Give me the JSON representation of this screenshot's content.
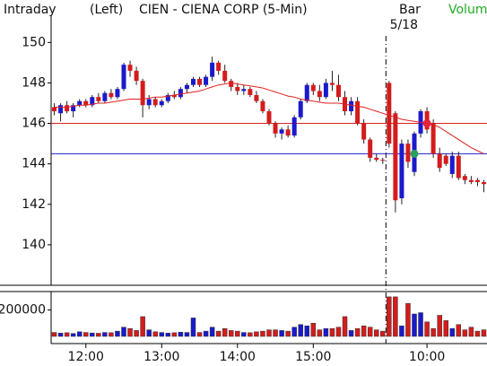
{
  "chart_data": {
    "type": "candlestick",
    "mode_label": "Intraday",
    "side_label": "(Left)",
    "title": "CIEN - CIENA CORP (5-Min)",
    "bar_label": "Bar",
    "volume_label": "Volume",
    "categories": [
      null,
      null,
      null,
      null,
      null,
      "12:00",
      null,
      null,
      null,
      null,
      null,
      null,
      null,
      null,
      null,
      null,
      null,
      "13:00",
      null,
      null,
      null,
      null,
      null,
      null,
      null,
      null,
      null,
      null,
      null,
      "14:00",
      null,
      null,
      null,
      null,
      null,
      null,
      null,
      null,
      null,
      null,
      null,
      "15:00",
      null,
      null,
      null,
      null,
      null,
      null,
      null,
      null,
      null,
      null,
      null,
      null,
      null,
      null,
      null,
      null,
      null,
      "10:00",
      null,
      null,
      null,
      null,
      null,
      null,
      null,
      null,
      null
    ],
    "open": [
      146.8,
      146.5,
      146.9,
      146.6,
      146.9,
      147.1,
      146.9,
      147.3,
      147.1,
      147.5,
      147.3,
      147.7,
      148.9,
      148.6,
      148.1,
      146.9,
      147.2,
      146.9,
      147.1,
      147.4,
      147.3,
      147.7,
      147.9,
      148.2,
      147.9,
      148.3,
      149.0,
      148.6,
      148.1,
      147.8,
      147.6,
      147.7,
      147.4,
      147.1,
      146.6,
      146.0,
      145.5,
      145.7,
      145.4,
      146.3,
      147.1,
      147.9,
      147.6,
      147.3,
      148.0,
      147.9,
      147.3,
      146.6,
      147.1,
      146.0,
      145.2,
      144.3,
      144.2,
      148.0,
      146.5,
      142.3,
      145.0,
      143.6,
      145.5,
      146.6,
      146.0,
      144.5,
      144.4,
      143.5,
      144.4,
      143.4,
      143.2,
      143.2,
      143.1
    ],
    "high": [
      147.0,
      147.0,
      147.1,
      147.0,
      147.2,
      147.2,
      147.4,
      147.5,
      147.6,
      147.7,
      147.8,
      149.0,
      149.1,
      148.8,
      148.2,
      147.4,
      147.3,
      147.2,
      147.5,
      147.6,
      147.8,
      148.0,
      148.3,
      148.3,
      148.4,
      149.3,
      149.1,
      148.9,
      148.2,
      148.0,
      147.9,
      147.8,
      147.6,
      147.2,
      146.7,
      146.1,
      145.8,
      145.9,
      146.4,
      147.2,
      148.0,
      148.0,
      147.9,
      148.2,
      148.6,
      148.4,
      147.6,
      147.3,
      147.3,
      146.2,
      145.3,
      144.5,
      144.3,
      148.1,
      146.6,
      145.2,
      145.2,
      145.6,
      146.7,
      146.8,
      146.2,
      144.8,
      144.5,
      144.6,
      144.6,
      143.5,
      143.4,
      143.3,
      143.2
    ],
    "low": [
      146.4,
      146.1,
      146.5,
      146.3,
      146.8,
      146.8,
      146.8,
      147.0,
      147.0,
      147.2,
      147.2,
      147.6,
      148.3,
      147.9,
      146.3,
      146.7,
      146.8,
      146.8,
      147.0,
      147.2,
      147.2,
      147.5,
      147.8,
      147.8,
      147.8,
      148.1,
      148.4,
      148.0,
      147.6,
      147.4,
      147.4,
      147.3,
      147.0,
      146.5,
      145.9,
      145.3,
      145.2,
      145.3,
      145.3,
      146.2,
      147.0,
      147.4,
      147.1,
      147.2,
      147.6,
      147.1,
      146.4,
      146.4,
      145.9,
      145.0,
      144.1,
      144.1,
      144.0,
      144.8,
      141.6,
      142.0,
      143.8,
      143.4,
      145.3,
      145.5,
      144.3,
      143.6,
      143.9,
      143.3,
      143.2,
      143.0,
      143.0,
      142.9,
      142.6
    ],
    "close": [
      146.6,
      146.9,
      146.6,
      146.9,
      147.1,
      146.9,
      147.3,
      147.1,
      147.5,
      147.3,
      147.7,
      148.9,
      148.6,
      148.1,
      146.9,
      147.2,
      146.9,
      147.1,
      147.4,
      147.3,
      147.7,
      147.9,
      148.2,
      147.9,
      148.3,
      149.0,
      148.6,
      148.1,
      147.8,
      147.6,
      147.7,
      147.4,
      147.1,
      146.6,
      146.0,
      145.5,
      145.7,
      145.4,
      146.3,
      147.1,
      147.9,
      147.6,
      147.3,
      148.0,
      147.9,
      147.3,
      146.6,
      147.1,
      146.0,
      145.2,
      144.3,
      144.2,
      144.2,
      145.0,
      142.2,
      145.0,
      144.1,
      145.5,
      146.6,
      145.7,
      144.5,
      143.8,
      144.0,
      144.4,
      143.3,
      143.2,
      143.1,
      143.1,
      143.0
    ],
    "up_color": "#1a1acc",
    "down_color": "#d41c1c",
    "ylim": [
      138,
      151.3
    ],
    "yticks": [
      140,
      142,
      144,
      146,
      148,
      150
    ],
    "moving_average": {
      "color": "#e02020",
      "values": [
        146.8,
        146.8,
        146.8,
        146.85,
        146.9,
        146.9,
        146.95,
        147.0,
        147.0,
        147.05,
        147.1,
        147.15,
        147.2,
        147.2,
        147.2,
        147.25,
        147.3,
        147.3,
        147.35,
        147.4,
        147.45,
        147.5,
        147.55,
        147.6,
        147.7,
        147.8,
        147.9,
        147.95,
        148.0,
        147.95,
        147.9,
        147.85,
        147.8,
        147.75,
        147.65,
        147.55,
        147.45,
        147.35,
        147.3,
        147.2,
        147.15,
        147.1,
        147.05,
        147.0,
        147.0,
        147.0,
        146.95,
        146.9,
        146.85,
        146.8,
        146.7,
        146.6,
        146.5,
        146.4,
        146.3,
        146.2,
        146.15,
        146.1,
        146.05,
        146.0,
        145.95,
        145.8,
        145.6,
        145.4,
        145.2,
        145.0,
        144.8,
        144.65,
        144.5
      ]
    },
    "hlines": [
      {
        "value": 146,
        "color": "#e02020"
      },
      {
        "value": 144.5,
        "color": "#2020cc"
      }
    ],
    "markers": [
      {
        "index": 57,
        "value": 144.5,
        "color": "#2aa060"
      },
      {
        "index": 59,
        "value": 146,
        "color": "#e8203a"
      }
    ],
    "session_start": {
      "index": 53,
      "label": "5/18"
    },
    "volume": {
      "values": [
        30000,
        25000,
        28000,
        22000,
        35000,
        30000,
        26000,
        24000,
        30000,
        28000,
        40000,
        70000,
        60000,
        45000,
        150000,
        50000,
        35000,
        30000,
        25000,
        28000,
        32000,
        30000,
        140000,
        30000,
        40000,
        70000,
        40000,
        60000,
        45000,
        40000,
        30000,
        28000,
        35000,
        40000,
        50000,
        50000,
        45000,
        40000,
        70000,
        90000,
        80000,
        100000,
        50000,
        60000,
        60000,
        70000,
        150000,
        45000,
        60000,
        80000,
        70000,
        50000,
        40000,
        300000,
        300000,
        80000,
        250000,
        170000,
        180000,
        110000,
        60000,
        160000,
        120000,
        60000,
        90000,
        50000,
        70000,
        40000,
        50000
      ],
      "ylim": [
        0,
        340000
      ],
      "yticks": [
        200000
      ]
    }
  }
}
